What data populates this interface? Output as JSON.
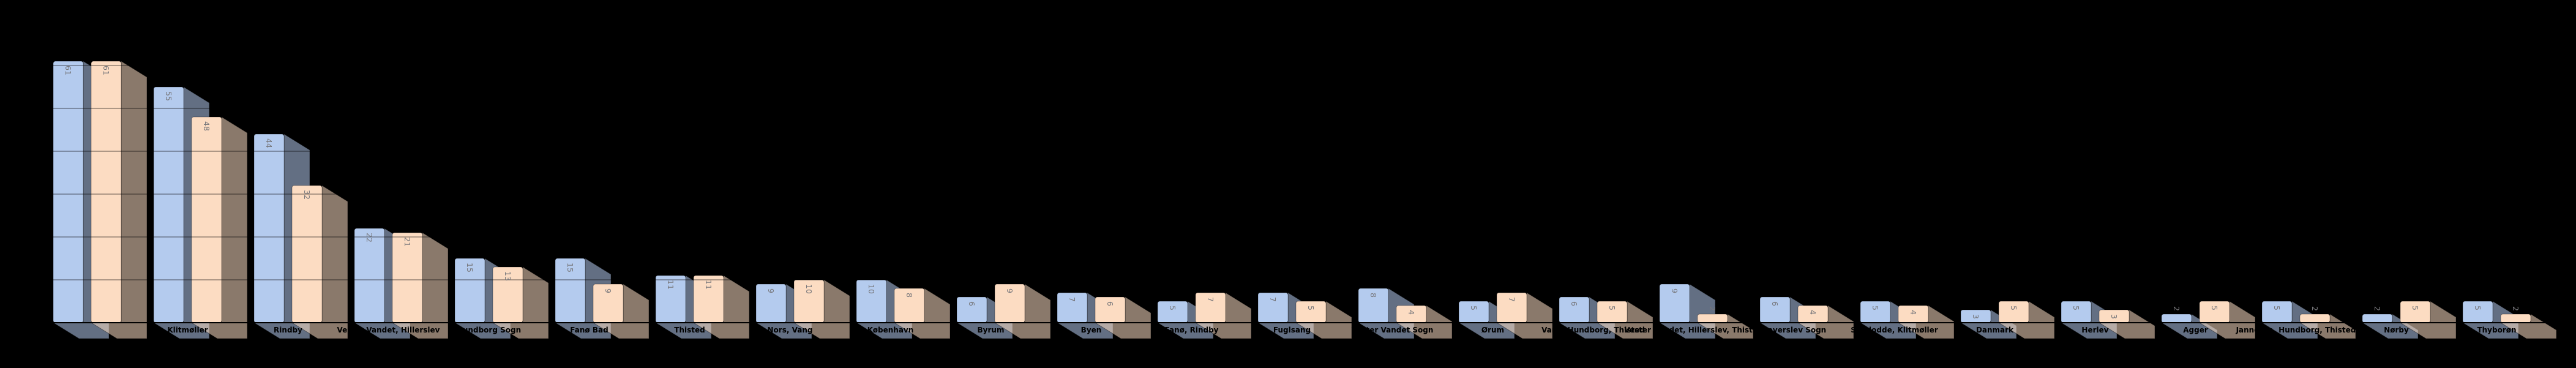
{
  "chart_data": {
    "type": "bar",
    "title": "",
    "xlabel": "",
    "ylabel": "",
    "background_color": "#000000",
    "grid": {
      "on": true,
      "interval": 10,
      "max_line": 60,
      "color_css": "rgba(0,0,0,0.5)"
    },
    "ylim": [
      0,
      65
    ],
    "legend": {
      "visible": false
    },
    "bar_colors": {
      "series1": "#b4cbee",
      "series2": "#fcdcc2"
    },
    "value_label_color": "#76767a",
    "tick_label_color": "#000000",
    "categories": [
      "",
      "Klitmøller",
      "Rindby",
      "Vester Vandet, Hillerslev",
      "Hundborg Sogn",
      "Fanø Bad",
      "Thisted",
      "Nors, Vang",
      "København",
      "Byrum",
      "Byen",
      "Fanø, Rindby",
      "Fuglsang",
      "Vester Vandet Sogn",
      "Ørum",
      "Vang, Hundborg, Thisted",
      "Vester Vandet, Hillerslev, Thisted",
      "Haverslev Sogn",
      "Sandodde, Klitmøller",
      "Danmark",
      "Herlev",
      "Agger",
      "Jannerup, Hundborg, Thisted",
      "Nørby",
      "Thyborøn"
    ],
    "series": [
      {
        "name": "series-1-blue",
        "color": "#b4cbee",
        "values": [
          61,
          55,
          44,
          22,
          15,
          15,
          11,
          9,
          10,
          6,
          7,
          5,
          7,
          8,
          5,
          6,
          9,
          6,
          5,
          3,
          5,
          2,
          5,
          2,
          5
        ]
      },
      {
        "name": "series-2-peach",
        "color": "#fcdcc2",
        "values": [
          61,
          48,
          32,
          21,
          13,
          9,
          11,
          10,
          8,
          9,
          6,
          7,
          5,
          4,
          7,
          5,
          2,
          4,
          4,
          5,
          3,
          5,
          2,
          5,
          2
        ]
      }
    ]
  }
}
